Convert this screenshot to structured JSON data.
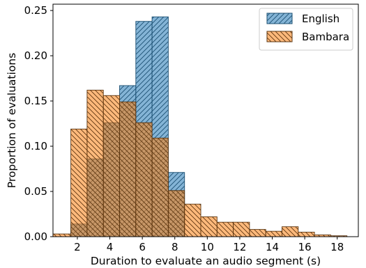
{
  "chart_data": {
    "type": "bar",
    "subtype": "overlapping-histogram",
    "xlabel": "Duration to evaluate an audio segment (s)",
    "ylabel": "Proportion of evaluations",
    "xlim": [
      0.5,
      19.3
    ],
    "ylim": [
      0,
      0.257
    ],
    "xticks": [
      2,
      4,
      6,
      8,
      10,
      12,
      14,
      16,
      18
    ],
    "yticks": [
      0.0,
      0.05,
      0.1,
      0.15,
      0.2,
      0.25
    ],
    "ytick_labels": [
      "0.00",
      "0.05",
      "0.10",
      "0.15",
      "0.20",
      "0.25"
    ],
    "grid": false,
    "legend_position": "top-right",
    "series": [
      {
        "name": "English",
        "color": "#1f77b4",
        "hatch": "forward-diagonal",
        "bins": [
          {
            "x0": 1.6,
            "x1": 2.6,
            "value": 0.014
          },
          {
            "x0": 2.6,
            "x1": 3.6,
            "value": 0.086
          },
          {
            "x0": 3.6,
            "x1": 4.6,
            "value": 0.126
          },
          {
            "x0": 4.6,
            "x1": 5.6,
            "value": 0.167
          },
          {
            "x0": 5.6,
            "x1": 6.6,
            "value": 0.238
          },
          {
            "x0": 6.6,
            "x1": 7.6,
            "value": 0.243
          },
          {
            "x0": 7.6,
            "x1": 8.6,
            "value": 0.071
          }
        ]
      },
      {
        "name": "Bambara",
        "color": "#ff7f0e",
        "hatch": "backward-diagonal",
        "bins": [
          {
            "x0": 0.5,
            "x1": 1.6,
            "value": 0.003
          },
          {
            "x0": 1.6,
            "x1": 2.6,
            "value": 0.119
          },
          {
            "x0": 2.6,
            "x1": 3.6,
            "value": 0.162
          },
          {
            "x0": 3.6,
            "x1": 4.6,
            "value": 0.156
          },
          {
            "x0": 4.6,
            "x1": 5.6,
            "value": 0.149
          },
          {
            "x0": 5.6,
            "x1": 6.6,
            "value": 0.126
          },
          {
            "x0": 6.6,
            "x1": 7.6,
            "value": 0.109
          },
          {
            "x0": 7.6,
            "x1": 8.6,
            "value": 0.051
          },
          {
            "x0": 8.6,
            "x1": 9.6,
            "value": 0.036
          },
          {
            "x0": 9.6,
            "x1": 10.6,
            "value": 0.022
          },
          {
            "x0": 10.6,
            "x1": 11.6,
            "value": 0.016
          },
          {
            "x0": 11.6,
            "x1": 12.6,
            "value": 0.016
          },
          {
            "x0": 12.6,
            "x1": 13.6,
            "value": 0.008
          },
          {
            "x0": 13.6,
            "x1": 14.6,
            "value": 0.006
          },
          {
            "x0": 14.6,
            "x1": 15.6,
            "value": 0.011
          },
          {
            "x0": 15.6,
            "x1": 16.6,
            "value": 0.005
          },
          {
            "x0": 16.6,
            "x1": 17.6,
            "value": 0.002
          },
          {
            "x0": 17.6,
            "x1": 18.6,
            "value": 0.001
          }
        ]
      }
    ]
  }
}
